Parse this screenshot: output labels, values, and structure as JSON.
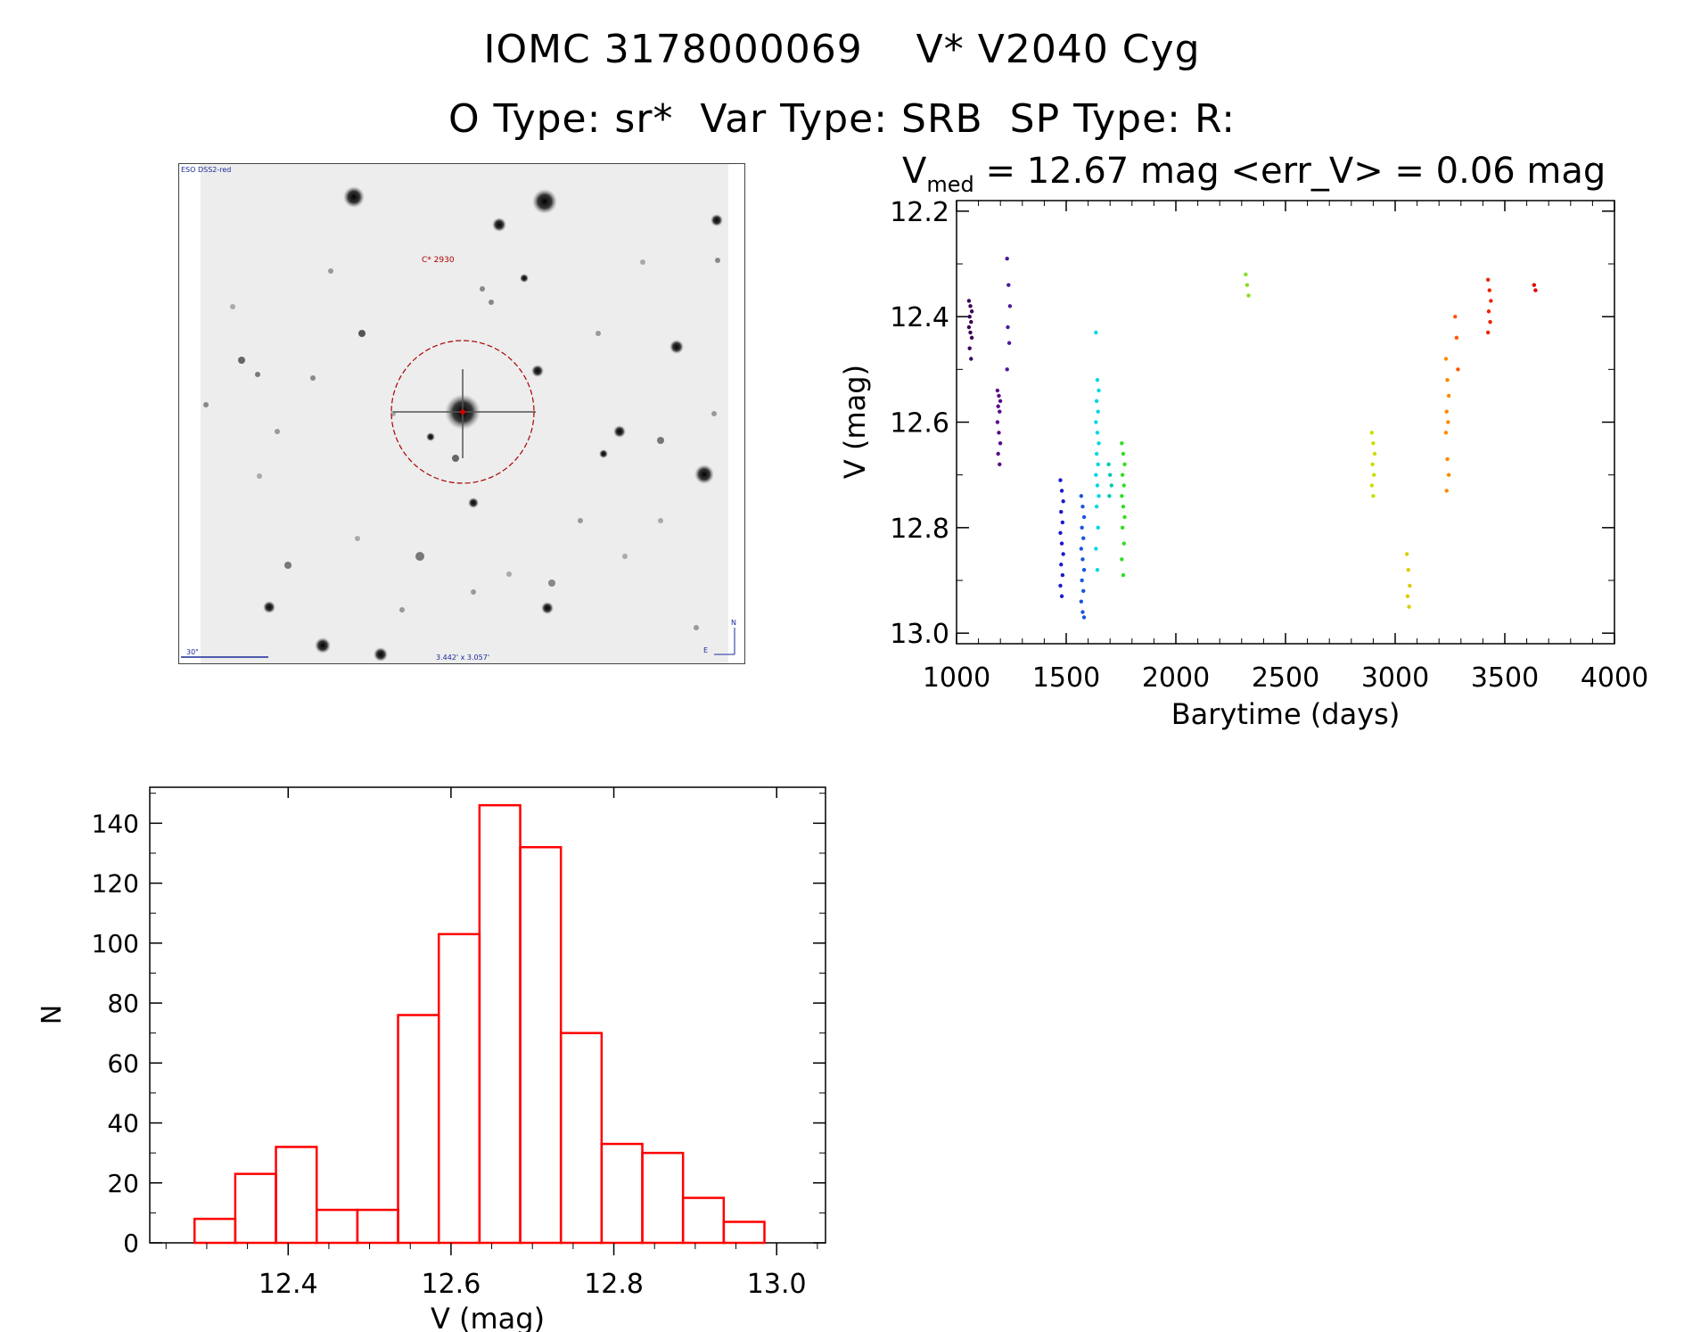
{
  "header": {
    "line1": "IOMC 3178000069    V* V2040 Cyg",
    "line2": "O Type: sr*  Var Type: SRB  SP Type: R:"
  },
  "finding_chart": {
    "survey_label": "ESO DSS2-red",
    "target_label": "C* 2930",
    "scale_label": "30\"",
    "size_label": "3.442' x 3.057'",
    "north_label": "N",
    "east_label": "E"
  },
  "chart_data": [
    {
      "type": "scatter",
      "title_prefix": "V",
      "title_sub": "med",
      "title_rest": " = 12.67 mag <err_V> = 0.06 mag",
      "xlabel": "Barytime (days)",
      "ylabel": "V (mag)",
      "xlim": [
        1000,
        4000
      ],
      "ylim": [
        13.02,
        12.18
      ],
      "xticks": [
        1000,
        1500,
        2000,
        2500,
        3000,
        3500,
        4000
      ],
      "yticks": [
        12.2,
        12.4,
        12.6,
        12.8,
        13.0
      ],
      "xtick_labels": [
        "1000",
        "1500",
        "2000",
        "2500",
        "3000",
        "3500",
        "4000"
      ],
      "ytick_labels": [
        "12.2",
        "12.4",
        "12.6",
        "12.8",
        "13.0"
      ],
      "grid": false,
      "series": [
        {
          "name": "g1",
          "color": "#3a0058",
          "x": 1063,
          "y": [
            12.37,
            12.38,
            12.39,
            12.4,
            12.41,
            12.42,
            12.43,
            12.44,
            12.46,
            12.48
          ]
        },
        {
          "name": "g2",
          "color": "#5a0a8a",
          "x": 1193,
          "y": [
            12.54,
            12.55,
            12.56,
            12.57,
            12.58,
            12.6,
            12.62,
            12.64,
            12.66,
            12.68
          ]
        },
        {
          "name": "g3",
          "color": "#4a1a9a",
          "x": 1237,
          "y": [
            12.29,
            12.34,
            12.38,
            12.42,
            12.45,
            12.5
          ]
        },
        {
          "name": "g4",
          "color": "#1a1acc",
          "x": 1480,
          "y": [
            12.71,
            12.73,
            12.75,
            12.77,
            12.79,
            12.81,
            12.83,
            12.85,
            12.87,
            12.89,
            12.91,
            12.93
          ]
        },
        {
          "name": "g5",
          "color": "#1a55dd",
          "x": 1575,
          "y": [
            12.74,
            12.76,
            12.78,
            12.8,
            12.82,
            12.84,
            12.86,
            12.88,
            12.9,
            12.92,
            12.94,
            12.96,
            12.97
          ]
        },
        {
          "name": "g6",
          "color": "#00d8e6",
          "x": 1642,
          "y": [
            12.43,
            12.52,
            12.54,
            12.56,
            12.58,
            12.6,
            12.62,
            12.64,
            12.66,
            12.68,
            12.7,
            12.72,
            12.74,
            12.76,
            12.8,
            12.84,
            12.88
          ]
        },
        {
          "name": "g7",
          "color": "#00c8b0",
          "x": 1700,
          "y": [
            12.68,
            12.7,
            12.72,
            12.74
          ]
        },
        {
          "name": "g8",
          "color": "#33dd22",
          "x": 1760,
          "y": [
            12.64,
            12.66,
            12.68,
            12.7,
            12.72,
            12.74,
            12.76,
            12.78,
            12.8,
            12.83,
            12.86,
            12.89
          ]
        },
        {
          "name": "g9",
          "color": "#88dd22",
          "x": 2325,
          "y": [
            12.32,
            12.34,
            12.36
          ]
        },
        {
          "name": "g10",
          "color": "#ccdd00",
          "x": 2900,
          "y": [
            12.62,
            12.64,
            12.66,
            12.68,
            12.7,
            12.72,
            12.74
          ]
        },
        {
          "name": "g11",
          "color": "#ddcc00",
          "x": 3060,
          "y": [
            12.85,
            12.88,
            12.91,
            12.93,
            12.95
          ]
        },
        {
          "name": "g12",
          "color": "#ff8800",
          "x": 3238,
          "y": [
            12.48,
            12.52,
            12.55,
            12.58,
            12.6,
            12.62,
            12.67,
            12.7,
            12.73
          ]
        },
        {
          "name": "g13",
          "color": "#ff5500",
          "x": 3280,
          "y": [
            12.4,
            12.44,
            12.5
          ]
        },
        {
          "name": "g14",
          "color": "#ee2200",
          "x": 3430,
          "y": [
            12.33,
            12.35,
            12.37,
            12.39,
            12.41,
            12.43
          ]
        },
        {
          "name": "g15",
          "color": "#dd0000",
          "x": 3640,
          "y": [
            12.34,
            12.35
          ]
        }
      ]
    },
    {
      "type": "bar",
      "xlabel": "V (mag)",
      "ylabel": "N",
      "xlim": [
        12.23,
        13.06
      ],
      "ylim": [
        0,
        152
      ],
      "xticks": [
        12.4,
        12.6,
        12.8,
        13.0
      ],
      "yticks": [
        0,
        20,
        40,
        60,
        80,
        100,
        120,
        140
      ],
      "xtick_labels": [
        "12.4",
        "12.6",
        "12.8",
        "13.0"
      ],
      "ytick_labels": [
        "0",
        "20",
        "40",
        "60",
        "80",
        "100",
        "120",
        "140"
      ],
      "bar_color": "#ff0000",
      "bins_start": 12.285,
      "bin_width": 0.05,
      "values": [
        8,
        23,
        32,
        11,
        11,
        76,
        103,
        146,
        132,
        70,
        33,
        30,
        15,
        7
      ]
    }
  ]
}
